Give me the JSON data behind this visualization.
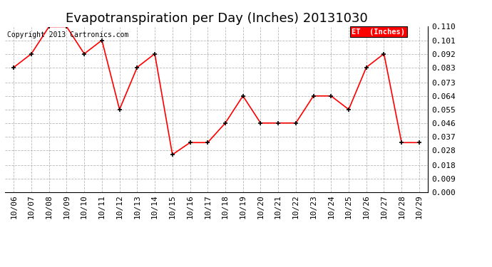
{
  "title": "Evapotranspiration per Day (Inches) 20131030",
  "copyright": "Copyright 2013 Cartronics.com",
  "legend_label": "ET  (Inches)",
  "x_labels": [
    "10/06",
    "10/07",
    "10/08",
    "10/09",
    "10/10",
    "10/11",
    "10/12",
    "10/13",
    "10/14",
    "10/15",
    "10/16",
    "10/17",
    "10/18",
    "10/19",
    "10/20",
    "10/21",
    "10/22",
    "10/23",
    "10/24",
    "10/25",
    "10/26",
    "10/27",
    "10/28",
    "10/29"
  ],
  "y_values": [
    0.083,
    0.092,
    0.11,
    0.11,
    0.092,
    0.101,
    0.055,
    0.083,
    0.092,
    0.025,
    0.033,
    0.033,
    0.046,
    0.064,
    0.046,
    0.046,
    0.046,
    0.064,
    0.064,
    0.055,
    0.083,
    0.092,
    0.033,
    0.033
  ],
  "line_color": "#ff0000",
  "marker_color": "#000000",
  "bg_color": "#ffffff",
  "grid_color": "#b0b0b0",
  "ylim": [
    0.0,
    0.11
  ],
  "yticks": [
    0.0,
    0.009,
    0.018,
    0.028,
    0.037,
    0.046,
    0.055,
    0.064,
    0.073,
    0.083,
    0.092,
    0.101,
    0.11
  ],
  "title_fontsize": 13,
  "tick_fontsize": 8,
  "copyright_fontsize": 7
}
